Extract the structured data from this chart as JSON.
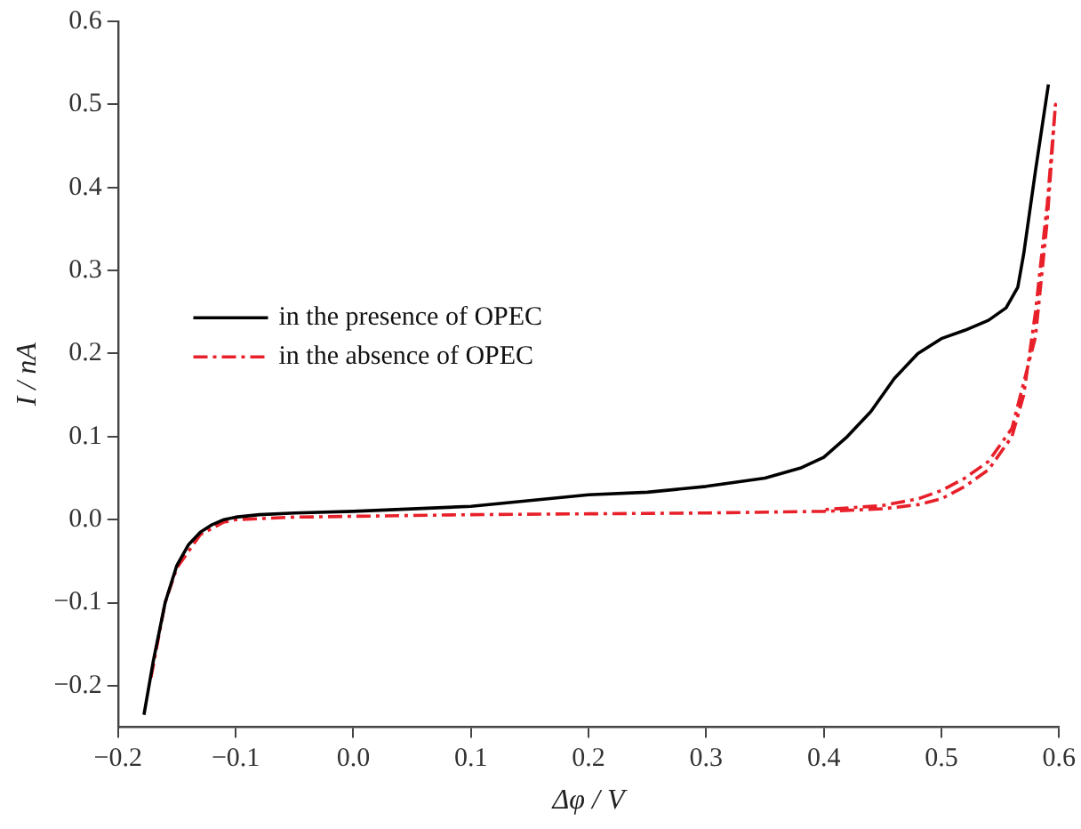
{
  "chart_data": {
    "type": "line",
    "xlabel": "Δφ / V",
    "ylabel": "I / nA",
    "xlim": [
      -0.2,
      0.6
    ],
    "xticks": [
      -0.2,
      -0.1,
      {
        "value": 0,
        "label": "0.0"
      },
      0.1,
      0.2,
      0.3,
      0.4,
      0.5,
      0.6
    ],
    "ylim": [
      -0.25,
      0.6
    ],
    "yticks": [
      -0.2,
      -0.1,
      {
        "value": 0,
        "label": "0.0"
      },
      0.1,
      0.2,
      0.3,
      0.4,
      0.5,
      0.6
    ],
    "legend": "center left",
    "grid": false,
    "marker": "none",
    "series": [
      {
        "name": "in the presence of OPEC",
        "color": "#000000",
        "line_style": "solid",
        "x": [
          -0.178,
          -0.17,
          -0.16,
          -0.15,
          -0.14,
          -0.13,
          -0.12,
          -0.11,
          -0.1,
          -0.08,
          -0.05,
          0.0,
          0.1,
          0.2,
          0.25,
          0.3,
          0.35,
          0.38,
          0.4,
          0.42,
          0.44,
          0.46,
          0.48,
          0.5,
          0.52,
          0.54,
          0.555,
          0.565,
          0.57,
          0.58,
          0.591
        ],
        "values": [
          -0.235,
          -0.17,
          -0.1,
          -0.055,
          -0.03,
          -0.015,
          -0.006,
          0.0,
          0.003,
          0.006,
          0.008,
          0.01,
          0.016,
          0.03,
          0.033,
          0.04,
          0.05,
          0.062,
          0.075,
          0.1,
          0.13,
          0.17,
          0.2,
          0.218,
          0.228,
          0.24,
          0.255,
          0.28,
          0.32,
          0.42,
          0.524
        ]
      },
      {
        "name": "in the absence of OPEC",
        "color": "#e8202a",
        "line_style": "dashdot",
        "x": [
          -0.172,
          -0.16,
          -0.15,
          -0.13,
          -0.11,
          -0.1,
          -0.05,
          0.0,
          0.1,
          0.2,
          0.3,
          0.4,
          0.45,
          0.48,
          0.5,
          0.52,
          0.54,
          0.56,
          0.57,
          0.58,
          0.59,
          0.597,
          0.59,
          0.58,
          0.56,
          0.54,
          0.52,
          0.5,
          0.48,
          0.45,
          0.4
        ],
        "values": [
          -0.19,
          -0.1,
          -0.058,
          -0.018,
          -0.003,
          0.0,
          0.003,
          0.004,
          0.006,
          0.007,
          0.008,
          0.01,
          0.013,
          0.018,
          0.025,
          0.04,
          0.06,
          0.1,
          0.15,
          0.25,
          0.38,
          0.5,
          0.36,
          0.22,
          0.11,
          0.07,
          0.05,
          0.035,
          0.025,
          0.017,
          0.012
        ]
      }
    ]
  }
}
